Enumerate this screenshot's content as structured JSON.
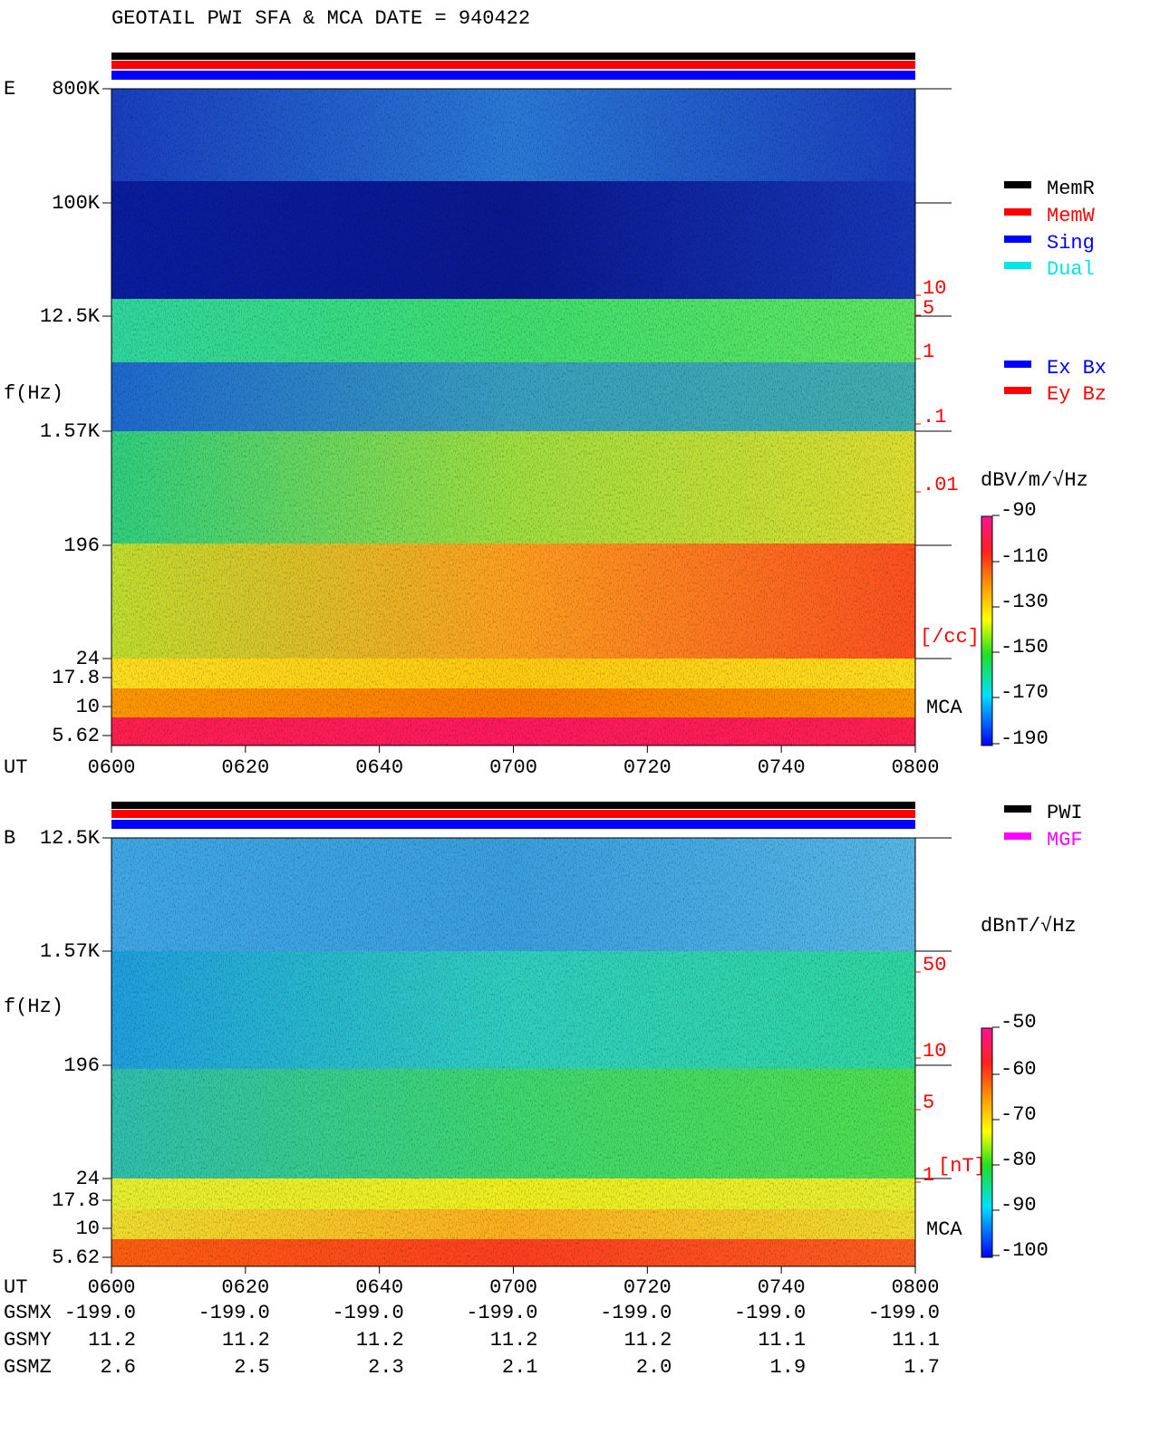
{
  "title": "GEOTAIL  PWI SFA & MCA   DATE = 940422",
  "panels": [
    {
      "label": "E",
      "freq_ticks": [
        "800K",
        "100K",
        "12.5K",
        "1.57K",
        "196",
        "24",
        "17.8",
        "10",
        "5.62"
      ],
      "y_label": "f(Hz)",
      "mca": "MCA",
      "ut_label": "UT",
      "time_ticks": [
        "0600",
        "0620",
        "0640",
        "0700",
        "0720",
        "0740",
        "0800"
      ],
      "side_ticks": [
        "10",
        "5",
        "1",
        ".1",
        ".01"
      ],
      "side_unit": "[/cc]",
      "colorbar_title": "dBV/m/√Hz",
      "colorbar_ticks": [
        "-90",
        "-110",
        "-130",
        "-150",
        "-170",
        "-190"
      ],
      "legend": [
        {
          "name": "MemR",
          "color": "#000000"
        },
        {
          "name": "MemW",
          "color": "#ff0000"
        },
        {
          "name": "Sing",
          "color": "#0000ff"
        },
        {
          "name": "Dual",
          "color": "#00e5e5"
        },
        {
          "name": "Ex Bx",
          "color": "#0000ff"
        },
        {
          "name": "Ey Bz",
          "color": "#ff0000"
        }
      ]
    },
    {
      "label": "B",
      "freq_ticks": [
        "12.5K",
        "1.57K",
        "196",
        "24",
        "17.8",
        "10",
        "5.62"
      ],
      "y_label": "f(Hz)",
      "mca": "MCA",
      "ut_label": "UT",
      "time_ticks": [
        "0600",
        "0620",
        "0640",
        "0700",
        "0720",
        "0740",
        "0800"
      ],
      "side_ticks": [
        "50",
        "10",
        "5",
        "1"
      ],
      "side_unit": "[nT]",
      "colorbar_title": "dBnT/√Hz",
      "colorbar_ticks": [
        "-50",
        "-60",
        "-70",
        "-80",
        "-90",
        "-100"
      ],
      "legend": [
        {
          "name": "PWI",
          "color": "#000000"
        },
        {
          "name": "MGF",
          "color": "#ff00ff"
        }
      ]
    }
  ],
  "orbit": [
    {
      "label": "GSMX",
      "values": [
        "-199.0",
        "-199.0",
        "-199.0",
        "-199.0",
        "-199.0",
        "-199.0",
        "-199.0"
      ]
    },
    {
      "label": "GSMY",
      "values": [
        "11.2",
        "11.2",
        "11.2",
        "11.2",
        "11.2",
        "11.1",
        "11.1"
      ]
    },
    {
      "label": "GSMZ",
      "values": [
        "2.6",
        "2.5",
        "2.3",
        "2.1",
        "2.0",
        "1.9",
        "1.7"
      ]
    }
  ]
}
